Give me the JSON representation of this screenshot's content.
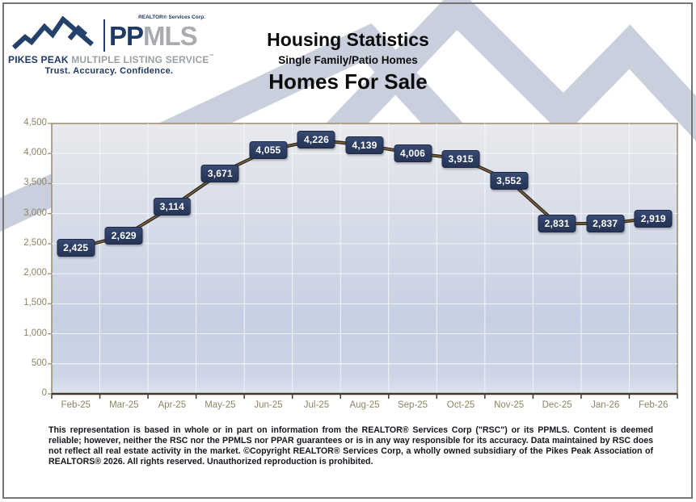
{
  "header": {
    "logo": {
      "realtor_services": "REALTOR® Services Corp.",
      "pp": "PP",
      "mls": "MLS",
      "pikes_peak": "PIKES PEAK",
      "mls_full": " MULTIPLE LISTING SERVICE",
      "trademark": "™",
      "tagline": "Trust. Accuracy. Confidence."
    },
    "title": "Housing Statistics",
    "subtitle": "Single Family/Patio Homes",
    "chart_title": "Homes For Sale"
  },
  "chart_data": {
    "type": "line",
    "title": "Homes For Sale",
    "categories": [
      "Feb-25",
      "Mar-25",
      "Apr-25",
      "May-25",
      "Jun-25",
      "Jul-25",
      "Aug-25",
      "Sep-25",
      "Oct-25",
      "Nov-25",
      "Dec-25",
      "Jan-26",
      "Feb-26"
    ],
    "values": [
      2425,
      2629,
      3114,
      3671,
      4055,
      4226,
      4139,
      4006,
      3915,
      3552,
      2831,
      2837,
      2919
    ],
    "xlabel": "",
    "ylabel": "",
    "ylim": [
      0,
      4500
    ],
    "ytick_step": 500,
    "grid": true,
    "legend_position": "none",
    "data_labels": true
  },
  "colors": {
    "brand_navy": "#1e3a66",
    "brand_gray": "#a9abb0",
    "watermark": "#c9cfdc",
    "axis_text": "#8e8565",
    "plot_border": "#9a8a6c",
    "axis_line": "#463826",
    "line_dark": "#2a2620",
    "line_tan": "#8a6c3e",
    "label_box": "#2d3e63",
    "grid_line": "#f4f5f8"
  },
  "icons": {
    "logo_glyph": "mountain-range-icon",
    "background": "mountain-watermark"
  },
  "footer": {
    "disclaimer": "This representation is based in whole or in part on information from the REALTOR® Services Corp (\"RSC\") or its PPMLS. Content is deemed reliable; however, neither the RSC nor the PPMLS nor PPAR guarantees or is in any way responsible for its accuracy. Data maintained by RSC does not reflect all real estate activity in the market. ©Copyright REALTOR® Services Corp, a wholly owned subsidiary of the Pikes Peak Association of REALTORS® 2026. All rights reserved. Unauthorized reproduction is prohibited."
  }
}
